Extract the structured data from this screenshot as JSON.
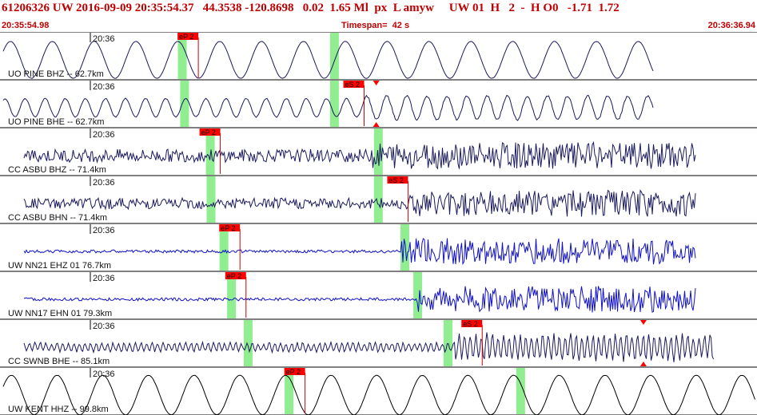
{
  "header": {
    "title": "61206326 UW 2016-09-09 20:35:54.37   44.3538 -120.8698   0.02  1.65 Ml  px  L amyw     UW 01  H   2  -  H O0   -1.71  1.72",
    "start_time": "20:35:54.98",
    "timespan": "Timespan=  42 s",
    "end_time": "20:36:36.94"
  },
  "colors": {
    "title": "#c00000",
    "trace_dark": "#1a1a5e",
    "trace_blue": "#1010c8",
    "trace_black": "#000000",
    "window": "#90ee90",
    "pick_label": "#ff0000",
    "pick_line": "#cc0000"
  },
  "traces": [
    {
      "label": "UO PINE BHZ -- 62.7km",
      "time_label": "20:36",
      "color": "trace_dark",
      "amp": 0.7,
      "freq": 0.12,
      "noise": 0.05,
      "onset": 0.0,
      "windows": [
        0.235,
        0.436
      ],
      "picks": [
        {
          "text": "eP 2",
          "at": 0.262
        }
      ],
      "markers": []
    },
    {
      "label": "UO PINE BHE -- 62.7km",
      "time_label": "20:36",
      "color": "trace_dark",
      "amp": 0.35,
      "freq": 0.25,
      "noise": 0.12,
      "onset": 0.48,
      "windows": [
        0.238,
        0.436
      ],
      "picks": [
        {
          "text": "eS 2",
          "at": 0.481
        }
      ],
      "markers": [
        0.497
      ]
    },
    {
      "label": "CC ASBU BHZ -- 71.4km",
      "time_label": "20:36",
      "color": "trace_dark",
      "amp": 0.35,
      "freq": 1.6,
      "noise": 0.6,
      "onset": 0.49,
      "windows": [
        0.272,
        0.494
      ],
      "picks": [
        {
          "text": "eP 2",
          "at": 0.291
        }
      ],
      "markers": []
    },
    {
      "label": "CC ASBU BHN -- 71.4km",
      "time_label": "20:36",
      "color": "trace_dark",
      "amp": 0.3,
      "freq": 1.5,
      "noise": 0.6,
      "onset": 0.54,
      "windows": [
        0.273,
        0.494
      ],
      "picks": [
        {
          "text": "eS 2",
          "at": 0.539
        }
      ],
      "markers": []
    },
    {
      "label": "UW NN21 EHZ 01 76.7km",
      "time_label": "20:36",
      "color": "trace_blue",
      "amp": 0.08,
      "freq": 1.8,
      "noise": 0.7,
      "onset": 0.53,
      "windows": [
        0.29,
        0.529
      ],
      "picks": [
        {
          "text": "eP 2",
          "at": 0.317
        }
      ],
      "markers": []
    },
    {
      "label": "UW NN17 EHN 01 79.3km",
      "time_label": "20:36",
      "color": "trace_blue",
      "amp": 0.08,
      "freq": 1.8,
      "noise": 0.7,
      "onset": 0.55,
      "windows": [
        0.3,
        0.546
      ],
      "picks": [
        {
          "text": "eP 2",
          "at": 0.325
        }
      ],
      "markers": []
    },
    {
      "label": "CC SWNB BHE -- 85.1km",
      "time_label": "20:36",
      "color": "trace_dark",
      "amp": 0.15,
      "freq": 0.9,
      "noise": 0.4,
      "onset": 0.6,
      "windows": [
        0.322,
        0.586
      ],
      "picks": [
        {
          "text": "eS 2",
          "at": 0.637
        }
      ],
      "markers": [
        0.85
      ]
    },
    {
      "label": "UW KENT HHZ -- 99.8km",
      "time_label": "20:36",
      "color": "trace_black",
      "amp": 0.75,
      "freq": 0.11,
      "noise": 0.05,
      "onset": 0.0,
      "windows": [
        0.376,
        0.682
      ],
      "picks": [
        {
          "text": "eP 2",
          "at": 0.403
        }
      ],
      "markers": []
    }
  ]
}
